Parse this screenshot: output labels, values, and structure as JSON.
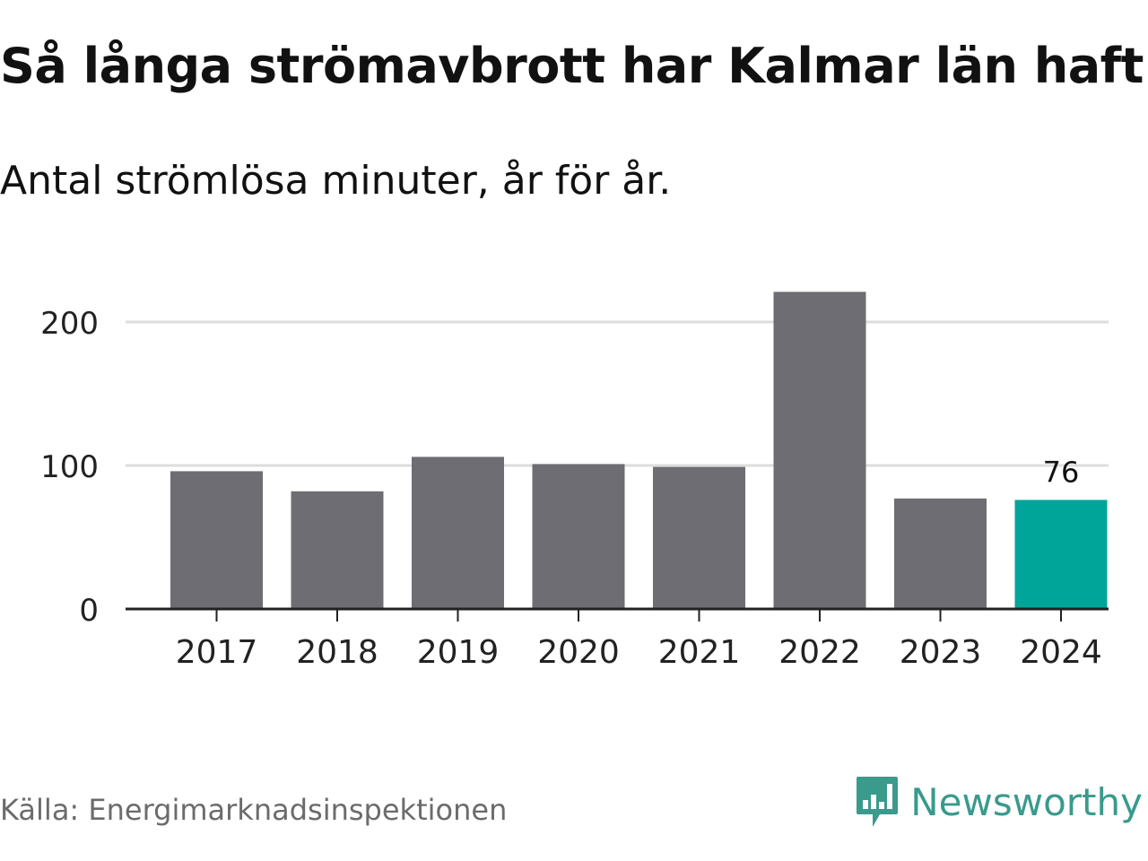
{
  "title": "Så långa strömavbrott har Kalmar län haft",
  "subtitle": "Antal strömlösa minuter, år för år.",
  "source": "Källa: Energimarknadsinspektionen",
  "brand": {
    "name": "Newsworthy",
    "icon": "newsworthy-logo-icon",
    "color": "#3a9a8c"
  },
  "colors": {
    "bar": "#6e6d73",
    "highlight": "#00a59a",
    "grid": "#dddddd",
    "axis": "#222222"
  },
  "chart_data": {
    "type": "bar",
    "categories": [
      "2017",
      "2018",
      "2019",
      "2020",
      "2021",
      "2022",
      "2023",
      "2024"
    ],
    "values": [
      96,
      82,
      106,
      101,
      99,
      221,
      77,
      76
    ],
    "highlight_index": 7,
    "data_labels": [
      {
        "index": 7,
        "text": "76"
      }
    ],
    "ylim": [
      0,
      230
    ],
    "yticks": [
      0,
      100,
      200
    ],
    "grid": true,
    "xlabel": "",
    "ylabel": ""
  }
}
